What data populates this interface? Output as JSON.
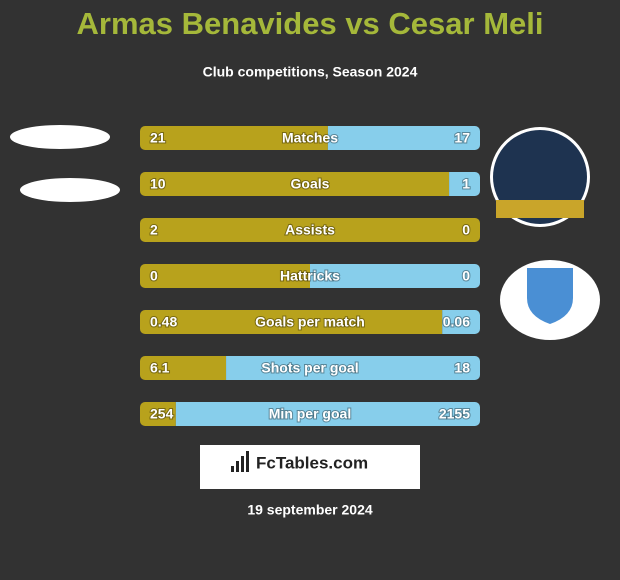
{
  "chart_data": {
    "type": "bar",
    "title": "Armas Benavides vs Cesar Meli",
    "subtitle": "Club competitions, Season 2024",
    "categories": [
      "Matches",
      "Goals",
      "Assists",
      "Hattricks",
      "Goals per match",
      "Shots per goal",
      "Min per goal"
    ],
    "series": [
      {
        "color": "#b8a21c",
        "values": [
          21,
          10,
          2,
          0,
          0.48,
          6.1,
          254
        ]
      },
      {
        "color": "#87ceeb",
        "values": [
          17,
          1,
          0,
          0,
          0.06,
          18,
          2155
        ]
      }
    ],
    "source": "FcTables.com",
    "date": "19 september 2024"
  }
}
